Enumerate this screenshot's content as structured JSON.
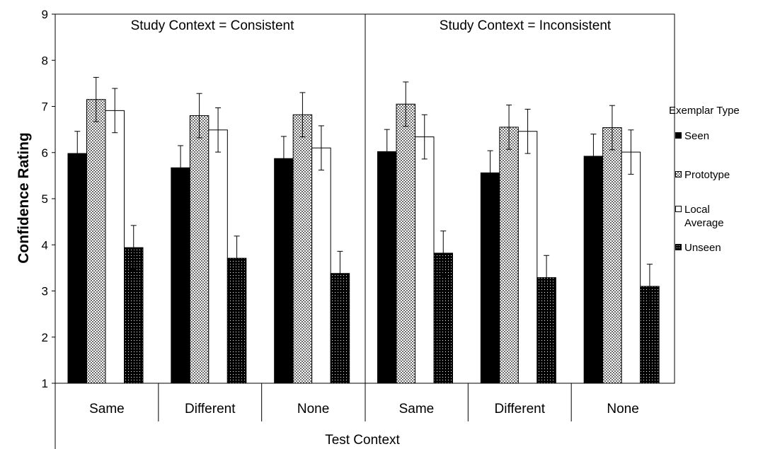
{
  "chart_data": {
    "type": "bar",
    "ylabel": "Confidence Rating",
    "xlabel": "Test Context",
    "ylim": [
      1,
      9
    ],
    "yticks": [
      "1",
      "2",
      "3",
      "4",
      "5",
      "6",
      "7",
      "8",
      "9"
    ],
    "panels": [
      {
        "title": "Study Context = Consistent",
        "categories": [
          "Same",
          "Different",
          "None"
        ]
      },
      {
        "title": "Study Context = Inconsistent",
        "categories": [
          "Same",
          "Different",
          "None"
        ]
      }
    ],
    "legend_title": "Exemplar Type",
    "legend_placement": "right",
    "series": [
      {
        "name": "Seen",
        "fill": "solid-black",
        "values": [
          5.98,
          5.67,
          5.87,
          6.02,
          5.56,
          5.92
        ],
        "errors": [
          0.48,
          0.48,
          0.48,
          0.48,
          0.48,
          0.48
        ]
      },
      {
        "name": "Prototype",
        "fill": "gray-checker",
        "values": [
          7.15,
          6.8,
          6.82,
          7.05,
          6.55,
          6.54
        ],
        "errors": [
          0.48,
          0.48,
          0.48,
          0.48,
          0.48,
          0.48
        ]
      },
      {
        "name": "Local\nAverage",
        "fill": "white",
        "values": [
          6.91,
          6.49,
          6.1,
          6.34,
          6.46,
          6.01
        ],
        "errors": [
          0.48,
          0.48,
          0.48,
          0.48,
          0.48,
          0.48
        ]
      },
      {
        "name": "Unseen",
        "fill": "black-dotted",
        "values": [
          3.94,
          3.71,
          3.38,
          3.82,
          3.29,
          3.1
        ],
        "errors": [
          0.48,
          0.48,
          0.48,
          0.48,
          0.48,
          0.48
        ]
      }
    ],
    "grid": false
  }
}
